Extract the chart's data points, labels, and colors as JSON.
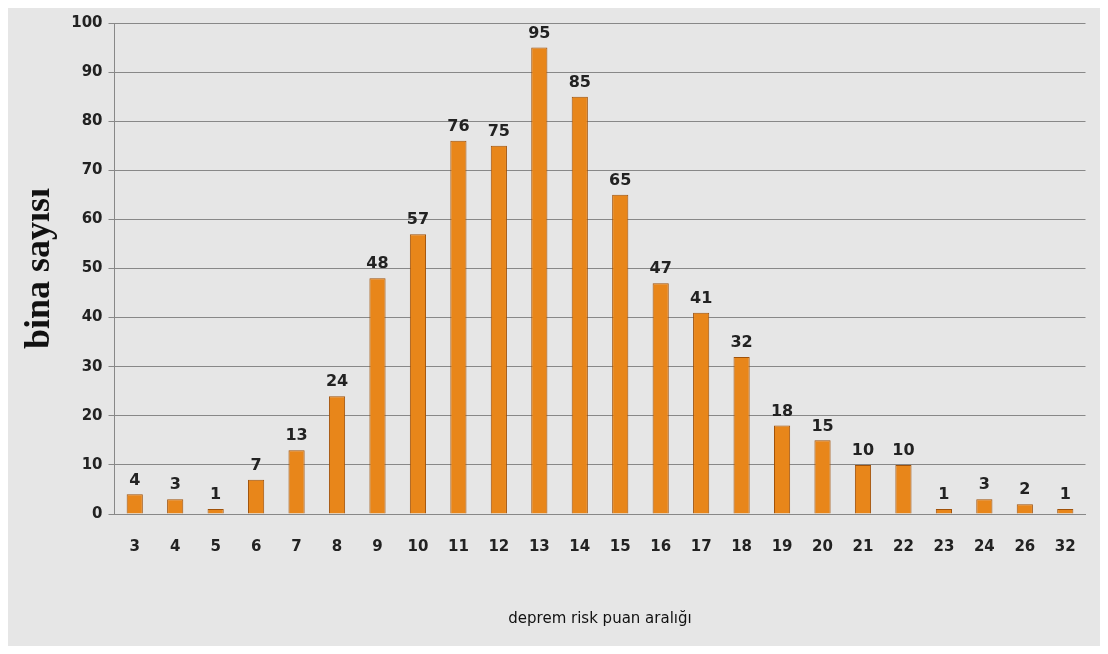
{
  "chart_data": {
    "type": "bar",
    "xlabel": "deprem risk puan aralığı",
    "ylabel": "bina sayısı",
    "categories": [
      "3",
      "4",
      "5",
      "6",
      "7",
      "8",
      "9",
      "10",
      "11",
      "12",
      "13",
      "14",
      "15",
      "16",
      "17",
      "18",
      "19",
      "20",
      "21",
      "22",
      "23",
      "24",
      "26",
      "32"
    ],
    "values": [
      4,
      3,
      1,
      7,
      13,
      24,
      48,
      57,
      76,
      75,
      95,
      85,
      65,
      47,
      41,
      32,
      18,
      15,
      10,
      10,
      1,
      3,
      2,
      1
    ],
    "color": "#e8861a",
    "ylim": [
      0,
      100
    ],
    "yticks": [
      0,
      10,
      20,
      30,
      40,
      50,
      60,
      70,
      80,
      90,
      100
    ],
    "grid": "y",
    "data_labels": true,
    "legend": false
  }
}
